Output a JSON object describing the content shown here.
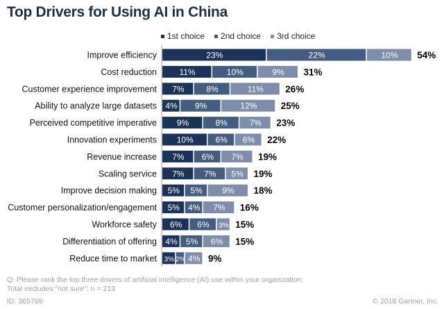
{
  "chart_data": {
    "type": "bar",
    "orientation": "horizontal",
    "stacked": true,
    "title": "Top Drivers for Using AI in China",
    "categories": [
      "Improve efficiency",
      "Cost reduction",
      "Customer experience improvement",
      "Ability to analyze large datasets",
      "Perceived competitive imperative",
      "Innovation experiments",
      "Revenue increase",
      "Scaling service",
      "Improve decision making",
      "Customer personalization/engagement",
      "Workforce safety",
      "Differentiation of offering",
      "Reduce time to market"
    ],
    "series": [
      {
        "name": "1st choice",
        "color": "#1b3358",
        "values": [
          23,
          11,
          7,
          4,
          9,
          10,
          7,
          7,
          5,
          5,
          6,
          4,
          3
        ]
      },
      {
        "name": "2nd choice",
        "color": "#435d80",
        "values": [
          22,
          10,
          8,
          9,
          8,
          6,
          6,
          7,
          5,
          4,
          6,
          5,
          2
        ]
      },
      {
        "name": "3rd choice",
        "color": "#7d8dab",
        "values": [
          10,
          9,
          11,
          12,
          7,
          6,
          7,
          5,
          9,
          7,
          3,
          6,
          4
        ]
      }
    ],
    "totals": [
      54,
      31,
      26,
      25,
      23,
      22,
      19,
      19,
      18,
      16,
      15,
      15,
      9
    ],
    "legend": "top",
    "unit": "%"
  },
  "footer": {
    "question": "Q: Please rank the top three drivers of artificial intelligence (AI) use within your organization.",
    "note": "Total excludes \"not sure\"; n = 213",
    "id": "ID: 365769",
    "copyright": "© 2018 Gartner, Inc."
  }
}
